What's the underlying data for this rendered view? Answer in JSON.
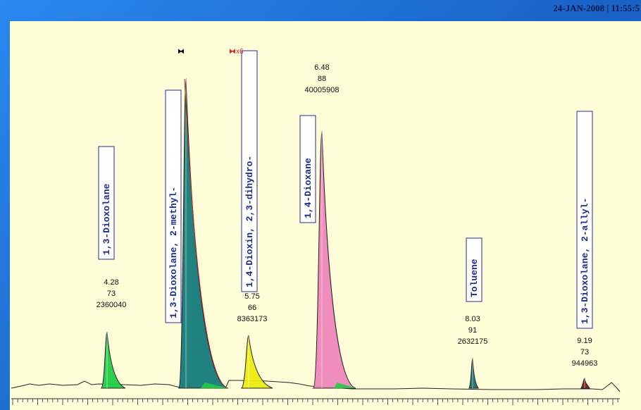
{
  "header": {
    "timestamp": "24-JAN-2008 | 11:55:5"
  },
  "chart_data": {
    "type": "line",
    "title": "",
    "xlabel": "",
    "ylabel": "",
    "xlim": [
      3.5,
      9.6
    ],
    "grid": false,
    "scale_marker": "x6",
    "colors": {
      "background": "#fefdd8",
      "trace": "#222222",
      "scaled_trace": "#cc2a2a",
      "label_box": "#2a2a9a"
    },
    "peaks": [
      {
        "name": "1,3-Dioxolane",
        "rt": "4.28",
        "ion": "73",
        "area": "2360040",
        "color": "#22cc44",
        "height": 0.17,
        "labeled": true
      },
      {
        "name": "1,3-Dioxolane, 2-methyl-",
        "rt": "",
        "ion": "",
        "area": "",
        "color": "#157a7a",
        "height": 0.94,
        "labeled": false
      },
      {
        "name": "1,4-Dioxin, 2,3-dihydro-",
        "rt": "5.75",
        "ion": "66",
        "area": "8363173",
        "color": "#ecec10",
        "height": 0.16,
        "labeled": true
      },
      {
        "name": "1,4-Dioxane",
        "rt": "6.48",
        "ion": "88",
        "area": "40005908",
        "color": "#ee88bb",
        "height": 0.78,
        "labeled": true
      },
      {
        "name": "Toluene",
        "rt": "8.03",
        "ion": "91",
        "area": "2632175",
        "color": "#166f6f",
        "height": 0.09,
        "labeled": true
      },
      {
        "name": "1,3-Dioxolane, 2-allyl-",
        "rt": "9.19",
        "ion": "73",
        "area": "944963",
        "color": "#8a1414",
        "height": 0.03,
        "labeled": true
      }
    ]
  }
}
